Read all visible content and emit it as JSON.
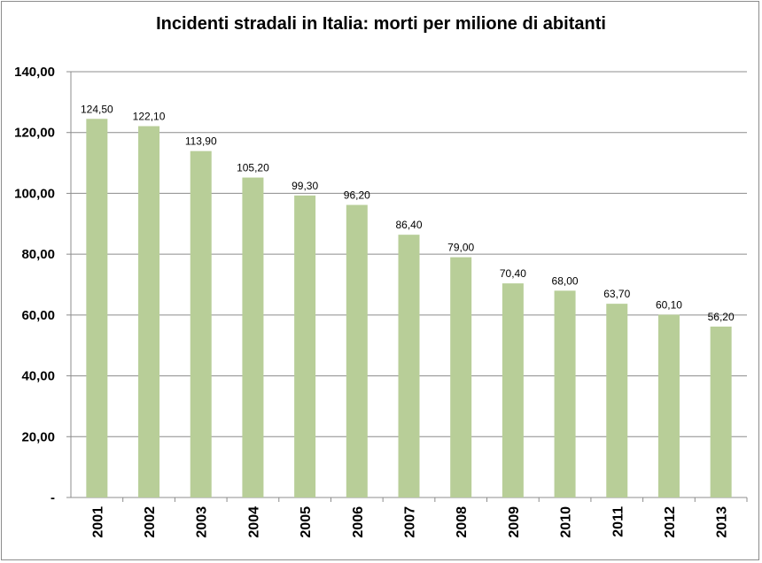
{
  "chart_data": {
    "type": "bar",
    "title": "Incidenti stradali in Italia: morti per milione di abitanti",
    "categories": [
      "2001",
      "2002",
      "2003",
      "2004",
      "2005",
      "2006",
      "2007",
      "2008",
      "2009",
      "2010",
      "2011",
      "2012",
      "2013"
    ],
    "values": [
      124.5,
      122.1,
      113.9,
      105.2,
      99.3,
      96.2,
      86.4,
      79.0,
      70.4,
      68.0,
      63.7,
      60.1,
      56.2
    ],
    "data_labels": [
      "124,50",
      "122,10",
      "113,90",
      "105,20",
      "99,30",
      "96,20",
      "86,40",
      "79,00",
      "70,40",
      "68,00",
      "63,70",
      "60,10",
      "56,20"
    ],
    "yticks": [
      0,
      20,
      40,
      60,
      80,
      100,
      120,
      140
    ],
    "ytick_labels": [
      "-",
      "20,00",
      "40,00",
      "60,00",
      "80,00",
      "100,00",
      "120,00",
      "140,00"
    ],
    "ylim": [
      0,
      140
    ],
    "xlabel": "",
    "ylabel": "",
    "grid": true,
    "legend": "none",
    "bar_color": "#b8ce98",
    "grid_color": "#8c8c8c"
  }
}
